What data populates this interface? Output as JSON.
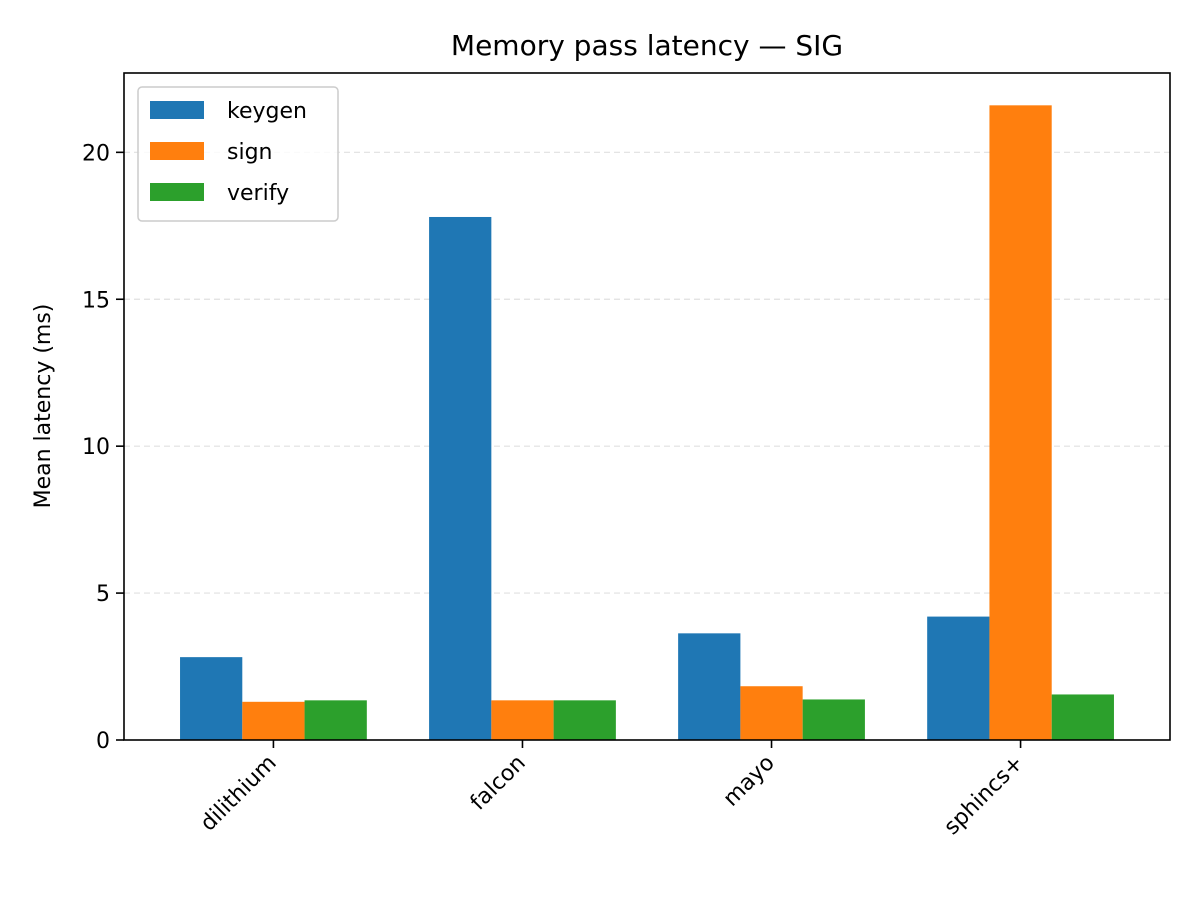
{
  "chart_data": {
    "type": "bar",
    "title": "Memory pass latency — SIG",
    "xlabel": "",
    "ylabel": "Mean latency (ms)",
    "categories": [
      "dilithium",
      "falcon",
      "mayo",
      "sphincs+"
    ],
    "series": [
      {
        "name": "keygen",
        "color": "#1f77b4",
        "values": [
          2.82,
          17.8,
          3.63,
          4.2
        ]
      },
      {
        "name": "sign",
        "color": "#ff7f0e",
        "values": [
          1.3,
          1.35,
          1.83,
          21.6
        ]
      },
      {
        "name": "verify",
        "color": "#2ca02c",
        "values": [
          1.35,
          1.35,
          1.38,
          1.55
        ]
      }
    ],
    "ylim": [
      0,
      22.7
    ],
    "yticks": [
      0,
      5,
      10,
      15,
      20
    ],
    "ytick_labels": [
      "0",
      "5",
      "10",
      "15",
      "20"
    ],
    "grid": "y-dashed",
    "legend_position": "top-left"
  }
}
